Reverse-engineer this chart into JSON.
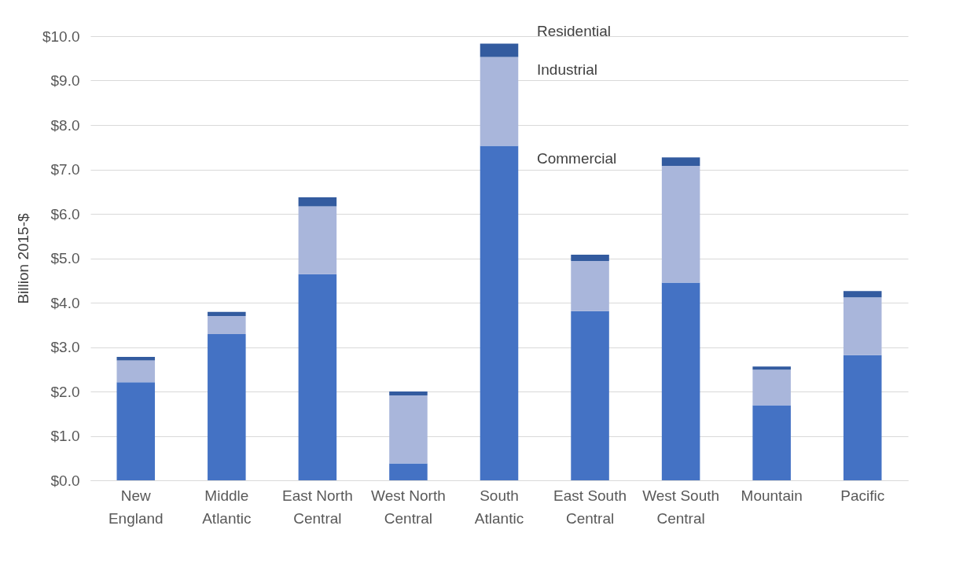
{
  "chart_data": {
    "type": "bar",
    "ylabel": "Billion 2015-$",
    "categories": [
      "New England",
      "Middle Atlantic",
      "East North Central",
      "West North Central",
      "South Atlantic",
      "East South Central",
      "West South Central",
      "Mountain",
      "Pacific"
    ],
    "stacked": true,
    "series": [
      {
        "name": "Commercial",
        "color": "#4472c4",
        "values": [
          2.21,
          3.29,
          4.64,
          0.38,
          7.53,
          3.81,
          4.45,
          1.69,
          2.82
        ]
      },
      {
        "name": "Industrial",
        "color": "#a9b6db",
        "values": [
          0.49,
          0.41,
          1.53,
          1.53,
          2.0,
          1.13,
          2.63,
          0.8,
          1.3
        ]
      },
      {
        "name": "Residential",
        "color": "#335b9f",
        "values": [
          0.08,
          0.09,
          0.2,
          0.09,
          0.3,
          0.14,
          0.19,
          0.07,
          0.14
        ]
      }
    ],
    "ylim": [
      0,
      10
    ],
    "yticks": [
      {
        "value": 0,
        "label": "$0.0"
      },
      {
        "value": 1,
        "label": "$1.0"
      },
      {
        "value": 2,
        "label": "$2.0"
      },
      {
        "value": 3,
        "label": "$3.0"
      },
      {
        "value": 4,
        "label": "$4.0"
      },
      {
        "value": 5,
        "label": "$5.0"
      },
      {
        "value": 6,
        "label": "$6.0"
      },
      {
        "value": 7,
        "label": "$7.0"
      },
      {
        "value": 8,
        "label": "$8.0"
      },
      {
        "value": 9,
        "label": "$9.0"
      },
      {
        "value": 10,
        "label": "$10.0"
      }
    ],
    "grid": "y"
  }
}
